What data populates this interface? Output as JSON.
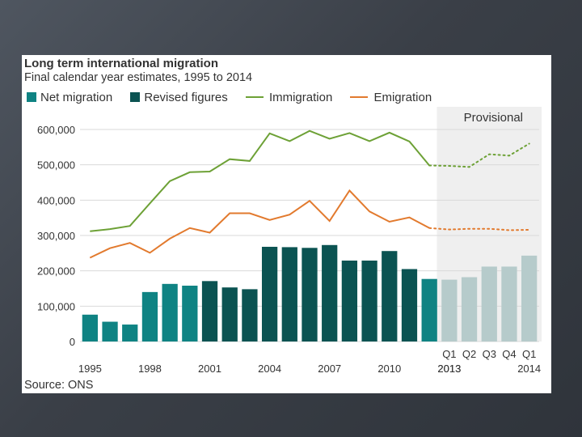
{
  "slide": {
    "background": "#3f454d"
  },
  "chart_data": {
    "type": "bar+line",
    "title": "Long term international migration",
    "subtitle": "Final calendar year estimates, 1995 to 2014",
    "source": "Source: ONS",
    "provisional_label": "Provisional",
    "ylim": [
      0,
      600000
    ],
    "y_ticks": [
      {
        "value": 0,
        "label": "0"
      },
      {
        "value": 100000,
        "label": "100,000"
      },
      {
        "value": 200000,
        "label": "200,000"
      },
      {
        "value": 300000,
        "label": "300,000"
      },
      {
        "value": 400000,
        "label": "400,000"
      },
      {
        "value": 500000,
        "label": "500,000"
      },
      {
        "value": 600000,
        "label": "600,000"
      }
    ],
    "x_year_labels": [
      "1995",
      "1998",
      "2001",
      "2004",
      "2007",
      "2010",
      "2013"
    ],
    "x_quarter_labels": [
      "Q1",
      "Q2",
      "Q3",
      "Q4",
      "Q1"
    ],
    "x_quarter_year_labels": [
      "2013",
      "2014"
    ],
    "categories": [
      "1995",
      "1996",
      "1997",
      "1998",
      "1999",
      "2000",
      "2001",
      "2002",
      "2003",
      "2004",
      "2005",
      "2006",
      "2007",
      "2008",
      "2009",
      "2010",
      "2011",
      "2012",
      "2013 Q1",
      "2013 Q2",
      "2013 Q3",
      "2013 Q4",
      "2014 Q1"
    ],
    "legend": [
      {
        "name": "Net migration",
        "kind": "box",
        "color": "#0f8383"
      },
      {
        "name": "Revised figures",
        "kind": "box",
        "color": "#0b5352"
      },
      {
        "name": "Immigration",
        "kind": "line",
        "color": "#6da136"
      },
      {
        "name": "Emigration",
        "kind": "line",
        "color": "#e27a2e"
      }
    ],
    "bar_colors": {
      "net": "#0f8383",
      "revised": "#0b5352",
      "provisional": "#b6cbcb"
    },
    "series": [
      {
        "name": "Net migration",
        "values": [
          76000,
          56000,
          48000,
          140000,
          163000,
          158000,
          171000,
          153000,
          148000,
          268000,
          267000,
          265000,
          273000,
          229000,
          229000,
          256000,
          205000,
          177000,
          175000,
          182000,
          212000,
          212000,
          243000
        ],
        "kinds": [
          "net",
          "net",
          "net",
          "net",
          "net",
          "net",
          "revised",
          "revised",
          "revised",
          "revised",
          "revised",
          "revised",
          "revised",
          "revised",
          "revised",
          "revised",
          "revised",
          "net",
          "provisional",
          "provisional",
          "provisional",
          "provisional",
          "provisional"
        ]
      },
      {
        "name": "Immigration",
        "values": [
          312000,
          318000,
          327000,
          391000,
          454000,
          479000,
          481000,
          516000,
          511000,
          589000,
          567000,
          596000,
          574000,
          590000,
          567000,
          591000,
          566000,
          498000,
          497000,
          494000,
          530000,
          526000,
          560000
        ]
      },
      {
        "name": "Emigration",
        "values": [
          237000,
          264000,
          279000,
          251000,
          291000,
          321000,
          308000,
          363000,
          363000,
          344000,
          359000,
          398000,
          341000,
          427000,
          368000,
          339000,
          351000,
          321000,
          317000,
          319000,
          319000,
          315000,
          316000
        ]
      }
    ]
  }
}
